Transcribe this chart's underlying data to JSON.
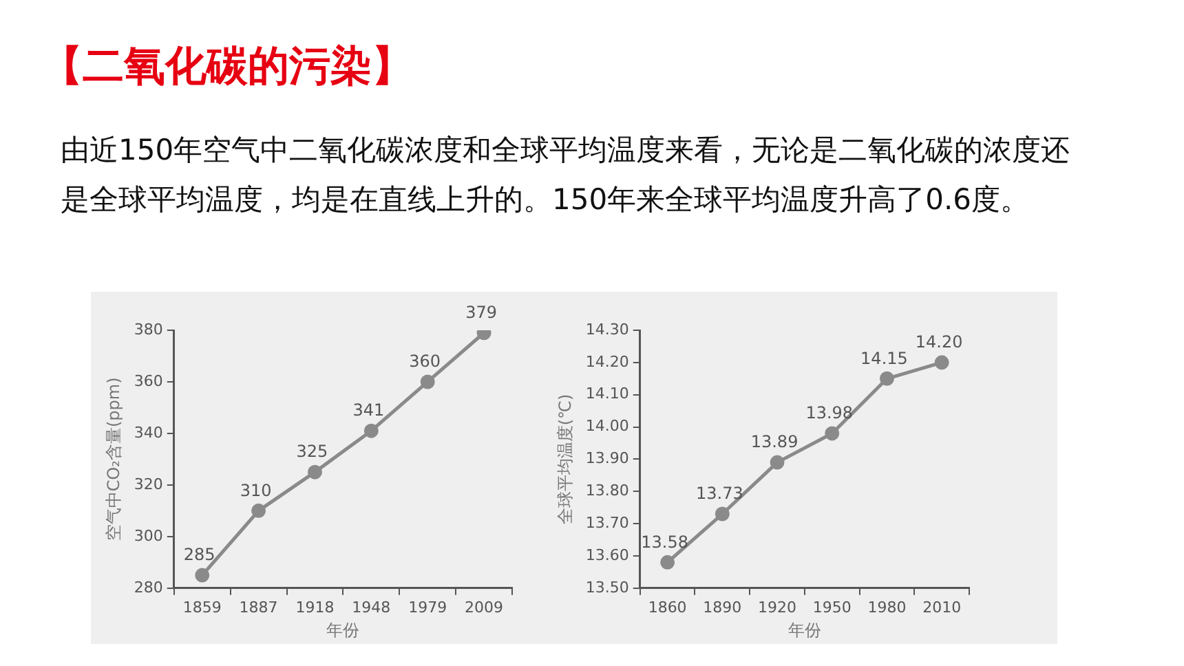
{
  "chart_data": [
    {
      "type": "other",
      "title": "【二氧化碳的污染】",
      "subtitle": "由近150年空气中二氧化碳浓度和全球平均温度来看，无论是二氧化碳的浓度还是全球平均温度，均是在直线上升的。150年来全球平均温度升高了0.6度。"
    },
    {
      "type": "line",
      "xlabel": "年份",
      "ylabel": "空气中CO₂含量(ppm)",
      "categories": [
        "1859",
        "1887",
        "1918",
        "1948",
        "1979",
        "2009"
      ],
      "values": [
        285,
        310,
        325,
        341,
        360,
        379
      ],
      "color": "#8a8a8a",
      "ylim": [
        280,
        380
      ],
      "yticks": [
        280,
        300,
        320,
        340,
        360,
        380
      ],
      "data_labels": true,
      "marker": "circle",
      "grid": false,
      "legend": false
    },
    {
      "type": "line",
      "xlabel": "年份",
      "ylabel": "全球平均温度(℃)",
      "categories": [
        "1860",
        "1890",
        "1920",
        "1950",
        "1980",
        "2010"
      ],
      "values": [
        13.58,
        13.73,
        13.89,
        13.98,
        14.15,
        14.2
      ],
      "value_labels": [
        "13.58",
        "13.73",
        "13.89",
        "13.98",
        "14.15",
        "14.20"
      ],
      "color": "#8a8a8a",
      "ylim": [
        13.5,
        14.3
      ],
      "yticks": [
        {
          "value": 13.5,
          "label": "13.50"
        },
        {
          "value": 13.6,
          "label": "13.60"
        },
        {
          "value": 13.7,
          "label": "13.70"
        },
        {
          "value": 13.8,
          "label": "13.80"
        },
        {
          "value": 13.9,
          "label": "13.90"
        },
        {
          "value": 14.0,
          "label": "14.00"
        },
        {
          "value": 14.1,
          "label": "14.10"
        },
        {
          "value": 14.2,
          "label": "14.20"
        },
        {
          "value": 14.3,
          "label": "14.30"
        }
      ],
      "marker": "circle",
      "grid": false,
      "legend": false
    }
  ]
}
